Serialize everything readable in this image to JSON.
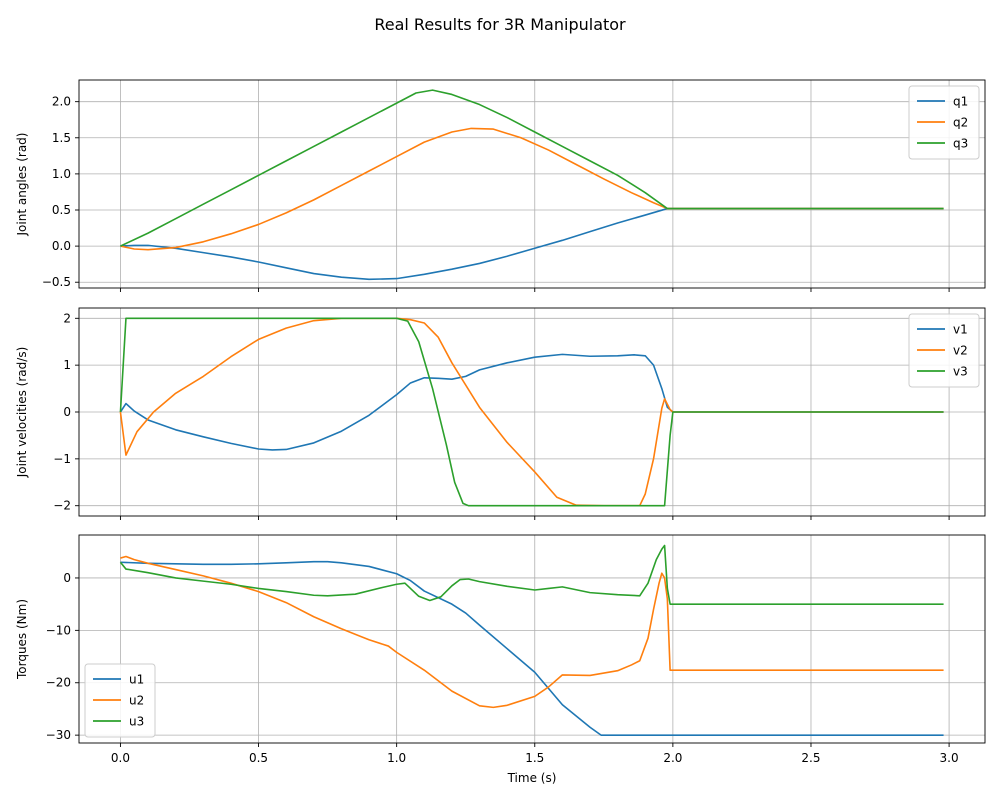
{
  "figure": {
    "title": "Real Results for 3R Manipulator"
  },
  "colors": {
    "c1": "#1f77b4",
    "c2": "#ff7f0e",
    "c3": "#2ca02c",
    "grid": "#b0b0b0"
  },
  "chart_data": [
    {
      "type": "line",
      "title": "",
      "xlabel": "",
      "ylabel": "Joint angles (rad)",
      "xlim": [
        -0.15,
        3.13
      ],
      "ylim": [
        -0.58,
        2.3
      ],
      "xticks": [
        0.0,
        0.5,
        1.0,
        1.5,
        2.0,
        2.5,
        3.0
      ],
      "xtick_labels": [],
      "yticks": [
        -0.5,
        0.0,
        0.5,
        1.0,
        1.5,
        2.0
      ],
      "ytick_labels": [
        "−0.5",
        "0.0",
        "0.5",
        "1.0",
        "1.5",
        "2.0"
      ],
      "grid": true,
      "legend": "upper right",
      "series": [
        {
          "name": "q1",
          "color": "#1f77b4",
          "points": [
            [
              0,
              0
            ],
            [
              0.05,
              0.01
            ],
            [
              0.1,
              0.01
            ],
            [
              0.2,
              -0.03
            ],
            [
              0.3,
              -0.09
            ],
            [
              0.4,
              -0.15
            ],
            [
              0.5,
              -0.22
            ],
            [
              0.6,
              -0.3
            ],
            [
              0.7,
              -0.38
            ],
            [
              0.8,
              -0.43
            ],
            [
              0.9,
              -0.46
            ],
            [
              1.0,
              -0.45
            ],
            [
              1.1,
              -0.39
            ],
            [
              1.2,
              -0.32
            ],
            [
              1.3,
              -0.24
            ],
            [
              1.4,
              -0.14
            ],
            [
              1.5,
              -0.03
            ],
            [
              1.6,
              0.08
            ],
            [
              1.7,
              0.2
            ],
            [
              1.8,
              0.32
            ],
            [
              1.9,
              0.43
            ],
            [
              1.98,
              0.52
            ],
            [
              2.98,
              0.52
            ]
          ]
        },
        {
          "name": "q2",
          "color": "#ff7f0e",
          "points": [
            [
              0,
              0
            ],
            [
              0.05,
              -0.04
            ],
            [
              0.1,
              -0.05
            ],
            [
              0.2,
              -0.02
            ],
            [
              0.3,
              0.06
            ],
            [
              0.4,
              0.17
            ],
            [
              0.5,
              0.3
            ],
            [
              0.6,
              0.46
            ],
            [
              0.7,
              0.64
            ],
            [
              0.8,
              0.84
            ],
            [
              0.9,
              1.04
            ],
            [
              1.0,
              1.24
            ],
            [
              1.1,
              1.44
            ],
            [
              1.2,
              1.58
            ],
            [
              1.27,
              1.63
            ],
            [
              1.35,
              1.62
            ],
            [
              1.45,
              1.5
            ],
            [
              1.55,
              1.33
            ],
            [
              1.65,
              1.13
            ],
            [
              1.75,
              0.93
            ],
            [
              1.85,
              0.74
            ],
            [
              1.93,
              0.6
            ],
            [
              1.98,
              0.52
            ],
            [
              2.98,
              0.52
            ]
          ]
        },
        {
          "name": "q3",
          "color": "#2ca02c",
          "points": [
            [
              0,
              0
            ],
            [
              0.1,
              0.18
            ],
            [
              0.2,
              0.38
            ],
            [
              0.3,
              0.58
            ],
            [
              0.4,
              0.78
            ],
            [
              0.5,
              0.98
            ],
            [
              0.6,
              1.18
            ],
            [
              0.7,
              1.38
            ],
            [
              0.8,
              1.58
            ],
            [
              0.9,
              1.78
            ],
            [
              1.0,
              1.98
            ],
            [
              1.07,
              2.12
            ],
            [
              1.13,
              2.16
            ],
            [
              1.2,
              2.1
            ],
            [
              1.3,
              1.96
            ],
            [
              1.4,
              1.78
            ],
            [
              1.5,
              1.58
            ],
            [
              1.6,
              1.38
            ],
            [
              1.7,
              1.18
            ],
            [
              1.8,
              0.98
            ],
            [
              1.9,
              0.74
            ],
            [
              1.98,
              0.52
            ],
            [
              2.98,
              0.52
            ]
          ]
        }
      ]
    },
    {
      "type": "line",
      "title": "",
      "xlabel": "",
      "ylabel": "Joint velocities (rad/s)",
      "xlim": [
        -0.15,
        3.13
      ],
      "ylim": [
        -2.22,
        2.22
      ],
      "xticks": [
        0.0,
        0.5,
        1.0,
        1.5,
        2.0,
        2.5,
        3.0
      ],
      "xtick_labels": [],
      "yticks": [
        -2,
        -1,
        0,
        1,
        2
      ],
      "ytick_labels": [
        "−2",
        "−1",
        "0",
        "1",
        "2"
      ],
      "grid": true,
      "legend": "upper right",
      "series": [
        {
          "name": "v1",
          "color": "#1f77b4",
          "points": [
            [
              0,
              0
            ],
            [
              0.02,
              0.18
            ],
            [
              0.05,
              0.02
            ],
            [
              0.1,
              -0.17
            ],
            [
              0.2,
              -0.38
            ],
            [
              0.3,
              -0.53
            ],
            [
              0.4,
              -0.67
            ],
            [
              0.5,
              -0.79
            ],
            [
              0.55,
              -0.81
            ],
            [
              0.6,
              -0.8
            ],
            [
              0.7,
              -0.66
            ],
            [
              0.8,
              -0.41
            ],
            [
              0.9,
              -0.07
            ],
            [
              1.0,
              0.37
            ],
            [
              1.05,
              0.62
            ],
            [
              1.1,
              0.73
            ],
            [
              1.15,
              0.72
            ],
            [
              1.2,
              0.7
            ],
            [
              1.25,
              0.76
            ],
            [
              1.3,
              0.9
            ],
            [
              1.4,
              1.05
            ],
            [
              1.5,
              1.17
            ],
            [
              1.6,
              1.23
            ],
            [
              1.7,
              1.19
            ],
            [
              1.8,
              1.2
            ],
            [
              1.86,
              1.22
            ],
            [
              1.9,
              1.2
            ],
            [
              1.93,
              1.0
            ],
            [
              1.96,
              0.5
            ],
            [
              1.98,
              0.1
            ],
            [
              2.0,
              0
            ],
            [
              2.98,
              0
            ]
          ]
        },
        {
          "name": "v2",
          "color": "#ff7f0e",
          "points": [
            [
              0,
              0
            ],
            [
              0.02,
              -0.92
            ],
            [
              0.06,
              -0.42
            ],
            [
              0.12,
              0
            ],
            [
              0.2,
              0.4
            ],
            [
              0.3,
              0.76
            ],
            [
              0.4,
              1.18
            ],
            [
              0.5,
              1.55
            ],
            [
              0.6,
              1.79
            ],
            [
              0.7,
              1.95
            ],
            [
              0.8,
              2.0
            ],
            [
              0.9,
              2.0
            ],
            [
              1.0,
              2.0
            ],
            [
              1.05,
              1.97
            ],
            [
              1.1,
              1.9
            ],
            [
              1.15,
              1.6
            ],
            [
              1.2,
              1.05
            ],
            [
              1.3,
              0.1
            ],
            [
              1.4,
              -0.65
            ],
            [
              1.5,
              -1.28
            ],
            [
              1.58,
              -1.82
            ],
            [
              1.65,
              -1.99
            ],
            [
              1.75,
              -2.0
            ],
            [
              1.88,
              -2.0
            ],
            [
              1.9,
              -1.75
            ],
            [
              1.93,
              -1.0
            ],
            [
              1.96,
              0.08
            ],
            [
              1.97,
              0.28
            ],
            [
              1.99,
              0.05
            ],
            [
              2.0,
              0
            ],
            [
              2.98,
              0
            ]
          ]
        },
        {
          "name": "v3",
          "color": "#2ca02c",
          "points": [
            [
              0,
              0
            ],
            [
              0.02,
              2.0
            ],
            [
              1.0,
              2.0
            ],
            [
              1.04,
              1.94
            ],
            [
              1.08,
              1.5
            ],
            [
              1.13,
              0.5
            ],
            [
              1.18,
              -0.7
            ],
            [
              1.21,
              -1.5
            ],
            [
              1.24,
              -1.95
            ],
            [
              1.26,
              -2.0
            ],
            [
              1.97,
              -2.0
            ],
            [
              1.99,
              -0.5
            ],
            [
              2.0,
              0
            ],
            [
              2.98,
              0
            ]
          ]
        }
      ]
    },
    {
      "type": "line",
      "title": "",
      "xlabel": "Time (s)",
      "ylabel": "Torques (Nm)",
      "xlim": [
        -0.15,
        3.13
      ],
      "ylim": [
        -31.5,
        8.2
      ],
      "xticks": [
        0.0,
        0.5,
        1.0,
        1.5,
        2.0,
        2.5,
        3.0
      ],
      "xtick_labels": [
        "0.0",
        "0.5",
        "1.0",
        "1.5",
        "2.0",
        "2.5",
        "3.0"
      ],
      "yticks": [
        -30,
        -20,
        -10,
        0
      ],
      "ytick_labels": [
        "−30",
        "−20",
        "−10",
        "0"
      ],
      "grid": true,
      "legend": "lower left",
      "series": [
        {
          "name": "u1",
          "color": "#1f77b4",
          "points": [
            [
              0,
              3.0
            ],
            [
              0.1,
              2.8
            ],
            [
              0.2,
              2.7
            ],
            [
              0.3,
              2.6
            ],
            [
              0.4,
              2.6
            ],
            [
              0.5,
              2.7
            ],
            [
              0.6,
              2.9
            ],
            [
              0.7,
              3.1
            ],
            [
              0.75,
              3.1
            ],
            [
              0.8,
              2.9
            ],
            [
              0.9,
              2.2
            ],
            [
              1.0,
              0.8
            ],
            [
              1.05,
              -0.5
            ],
            [
              1.1,
              -2.5
            ],
            [
              1.2,
              -5.0
            ],
            [
              1.25,
              -6.7
            ],
            [
              1.3,
              -9.0
            ],
            [
              1.4,
              -13.5
            ],
            [
              1.5,
              -18.0
            ],
            [
              1.6,
              -24.2
            ],
            [
              1.7,
              -28.5
            ],
            [
              1.74,
              -30.0
            ],
            [
              1.98,
              -30.0
            ],
            [
              2.98,
              -30.0
            ]
          ]
        },
        {
          "name": "u2",
          "color": "#ff7f0e",
          "points": [
            [
              0,
              3.8
            ],
            [
              0.02,
              4.1
            ],
            [
              0.05,
              3.5
            ],
            [
              0.1,
              2.8
            ],
            [
              0.2,
              1.6
            ],
            [
              0.3,
              0.4
            ],
            [
              0.4,
              -1.0
            ],
            [
              0.5,
              -2.6
            ],
            [
              0.6,
              -4.7
            ],
            [
              0.7,
              -7.4
            ],
            [
              0.8,
              -9.7
            ],
            [
              0.9,
              -11.8
            ],
            [
              0.97,
              -13.0
            ],
            [
              1.0,
              -14.2
            ],
            [
              1.1,
              -17.6
            ],
            [
              1.2,
              -21.6
            ],
            [
              1.3,
              -24.4
            ],
            [
              1.35,
              -24.7
            ],
            [
              1.4,
              -24.3
            ],
            [
              1.5,
              -22.6
            ],
            [
              1.55,
              -20.8
            ],
            [
              1.6,
              -18.5
            ],
            [
              1.7,
              -18.6
            ],
            [
              1.8,
              -17.7
            ],
            [
              1.85,
              -16.6
            ],
            [
              1.88,
              -15.8
            ],
            [
              1.91,
              -11.5
            ],
            [
              1.93,
              -6.0
            ],
            [
              1.95,
              -1.0
            ],
            [
              1.96,
              0.9
            ],
            [
              1.97,
              0.0
            ],
            [
              1.98,
              -4.0
            ],
            [
              1.99,
              -17.6
            ],
            [
              2.98,
              -17.6
            ]
          ]
        },
        {
          "name": "u3",
          "color": "#2ca02c",
          "points": [
            [
              0,
              3.0
            ],
            [
              0.02,
              1.7
            ],
            [
              0.1,
              1.0
            ],
            [
              0.2,
              0.0
            ],
            [
              0.3,
              -0.6
            ],
            [
              0.4,
              -1.2
            ],
            [
              0.5,
              -2.0
            ],
            [
              0.6,
              -2.6
            ],
            [
              0.7,
              -3.3
            ],
            [
              0.75,
              -3.4
            ],
            [
              0.85,
              -3.1
            ],
            [
              0.95,
              -1.8
            ],
            [
              1.0,
              -1.2
            ],
            [
              1.03,
              -1.0
            ],
            [
              1.08,
              -3.5
            ],
            [
              1.12,
              -4.3
            ],
            [
              1.16,
              -3.6
            ],
            [
              1.2,
              -1.5
            ],
            [
              1.23,
              -0.3
            ],
            [
              1.26,
              -0.2
            ],
            [
              1.3,
              -0.7
            ],
            [
              1.4,
              -1.6
            ],
            [
              1.5,
              -2.3
            ],
            [
              1.55,
              -2.0
            ],
            [
              1.6,
              -1.7
            ],
            [
              1.7,
              -2.8
            ],
            [
              1.8,
              -3.2
            ],
            [
              1.88,
              -3.4
            ],
            [
              1.91,
              -1.0
            ],
            [
              1.94,
              3.5
            ],
            [
              1.96,
              5.5
            ],
            [
              1.97,
              6.2
            ],
            [
              1.98,
              -2.0
            ],
            [
              1.99,
              -5.0
            ],
            [
              2.98,
              -5.0
            ]
          ]
        }
      ]
    }
  ]
}
